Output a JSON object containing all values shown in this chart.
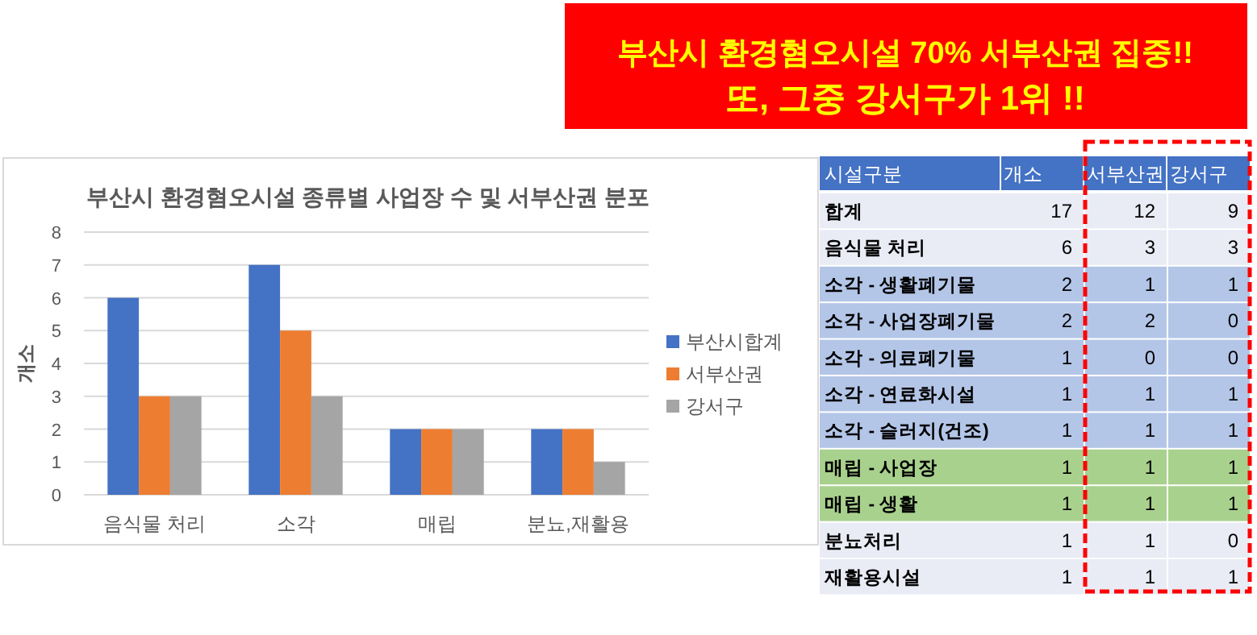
{
  "chart_data": [
    {
      "type": "other",
      "annotations": [
        "부산시 환경혐오시설 70% 서부산권 집중!!",
        "또, 그중 강서구가 1위 !!"
      ]
    },
    {
      "type": "bar",
      "title": "부산시 환경혐오시설 종류별 사업장 수 및 서부산권 분포",
      "ylabel": "개소",
      "categories": [
        "음식물 처리",
        "소각",
        "매립",
        "분뇨,재활용"
      ],
      "series": [
        {
          "name": "부산시합계",
          "color": "#4472c4",
          "values": [
            6,
            7,
            2,
            2
          ]
        },
        {
          "name": "서부산권",
          "color": "#ed7d31",
          "values": [
            3,
            5,
            2,
            2
          ]
        },
        {
          "name": "강서구",
          "color": "#a5a5a5",
          "values": [
            3,
            3,
            2,
            1
          ]
        }
      ],
      "ylim": [
        0,
        8
      ],
      "yticks": [
        0,
        1,
        2,
        3,
        4,
        5,
        6,
        7,
        8
      ],
      "grid": "y",
      "legend": "right"
    },
    {
      "type": "heatmap",
      "ylabel": "시설구분",
      "categories": [
        "개소",
        "서부산권",
        "강서구"
      ],
      "y_categories": [
        "합계",
        "음식물 처리",
        "소각 - 생활폐기물",
        "소각 - 사업장폐기물",
        "소각 - 의료폐기물",
        "소각 - 연료화시설",
        "소각 - 슬러지(건조)",
        "매립 - 사업장",
        "매립 - 생활",
        "분뇨처리",
        "재활용시설"
      ],
      "cells": [
        [
          17,
          12,
          9
        ],
        [
          6,
          3,
          3
        ],
        [
          2,
          1,
          1
        ],
        [
          2,
          2,
          0
        ],
        [
          1,
          0,
          0
        ],
        [
          1,
          1,
          1
        ],
        [
          1,
          1,
          1
        ],
        [
          1,
          1,
          1
        ],
        [
          1,
          1,
          1
        ],
        [
          1,
          1,
          0
        ],
        [
          1,
          1,
          1
        ]
      ],
      "colors": [
        "#e9ebf5",
        "#e9ebf5",
        "#b4c6e7",
        "#b4c6e7",
        "#b4c6e7",
        "#b4c6e7",
        "#b4c6e7",
        "#a9d18e",
        "#a9d18e",
        "#e9ebf5",
        "#e9ebf5"
      ],
      "data_labels": true
    }
  ]
}
